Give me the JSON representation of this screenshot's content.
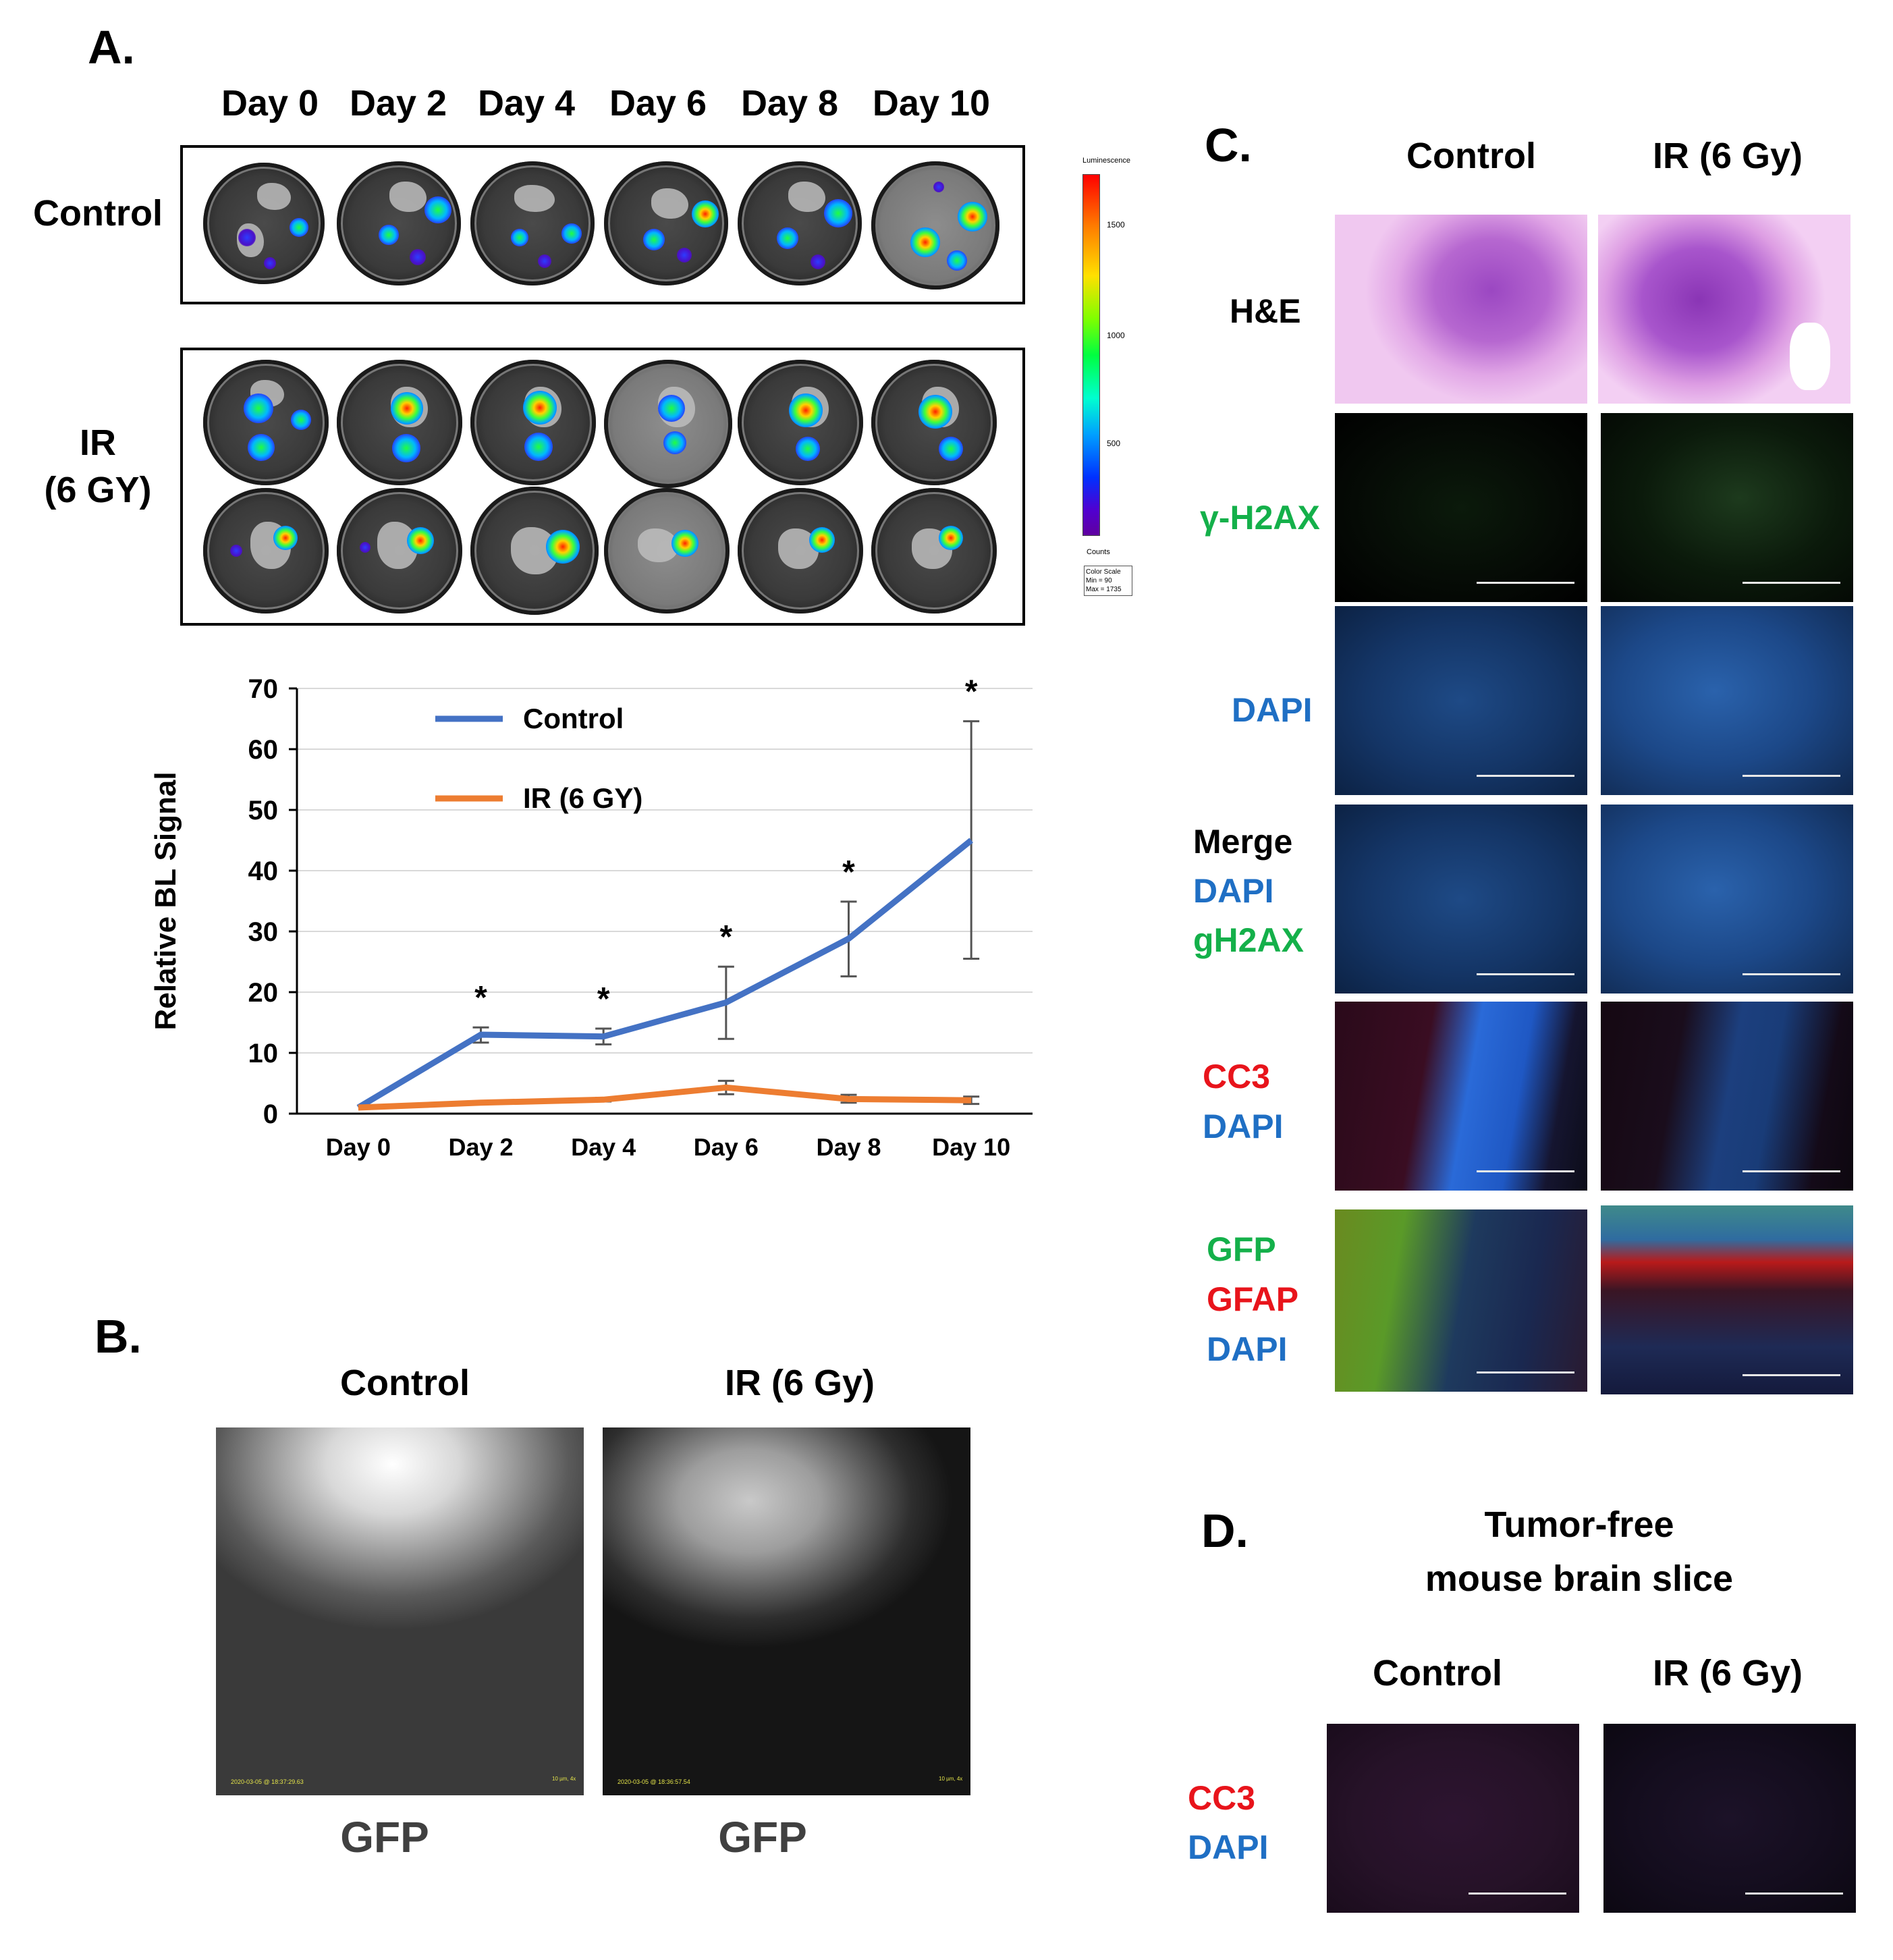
{
  "panel_a": {
    "letter": "A.",
    "days": [
      "Day 0",
      "Day 2",
      "Day 4",
      "Day 6",
      "Day 8",
      "Day 10"
    ],
    "row_control": "Control",
    "row_ir_line1": "IR",
    "row_ir_line2": "(6 GY)",
    "colorbar": {
      "title": "Luminescence",
      "ticks": [
        "1500",
        "1000",
        "500"
      ],
      "units": "Counts",
      "scale_title": "Color Scale",
      "scale_min": "Min = 90",
      "scale_max": "Max = 1735"
    }
  },
  "chart_data": {
    "type": "line",
    "categories": [
      "Day 0",
      "Day 2",
      "Day 4",
      "Day 6",
      "Day 8",
      "Day 10"
    ],
    "ylabel": "Relative BL Signal",
    "xlabel": "",
    "ylim": [
      0,
      70
    ],
    "yticks": [
      "0",
      "10",
      "20",
      "30",
      "40",
      "50",
      "60",
      "70"
    ],
    "grid": true,
    "legend_position": "top-center",
    "series": [
      {
        "name": "Control",
        "color": "#4472c4",
        "values": [
          1,
          13,
          12.7,
          18.3,
          28.8,
          45
        ],
        "err_low": [
          1,
          11.7,
          11.4,
          12.3,
          22.6,
          25.5
        ],
        "err_high": [
          1,
          14.2,
          14,
          24.2,
          34.9,
          64.6
        ]
      },
      {
        "name": "IR (6 GY)",
        "color": "#ed7d31",
        "values": [
          1,
          1.8,
          2.3,
          4.3,
          2.4,
          2.2
        ],
        "err_low": [
          1,
          1.6,
          2,
          3.2,
          1.8,
          1.6
        ],
        "err_high": [
          1,
          2,
          2.6,
          5.4,
          3.1,
          2.8
        ]
      }
    ],
    "significance": [
      "",
      "*",
      "*",
      "*",
      "*",
      "*"
    ]
  },
  "panel_b": {
    "letter": "B.",
    "col_control": "Control",
    "col_ir": "IR (6 Gy)",
    "stamp_control": "2020-03-05 @ 18:37:29.63",
    "stamp_ir": "2020-03-05 @ 18:36:57.54",
    "scale_text": "10 µm, 4x",
    "caption_control": "GFP",
    "caption_ir": "GFP"
  },
  "panel_c": {
    "letter": "C.",
    "col_control": "Control",
    "col_ir": "IR (6 Gy)",
    "row_he": "H&E",
    "row_h2ax": "γ-H2AX",
    "row_dapi": "DAPI",
    "row_merge_1": "Merge",
    "row_merge_2": "DAPI",
    "row_merge_3": "gH2AX",
    "row_cc3_1": "CC3",
    "row_cc3_2": "DAPI",
    "row_gfp_1": "GFP",
    "row_gfp_2": "GFAP",
    "row_gfp_3": "DAPI"
  },
  "panel_d": {
    "letter": "D.",
    "title_1": "Tumor-free",
    "title_2": "mouse brain slice",
    "col_control": "Control",
    "col_ir": "IR (6 Gy)",
    "row_1": "CC3",
    "row_2": "DAPI"
  }
}
